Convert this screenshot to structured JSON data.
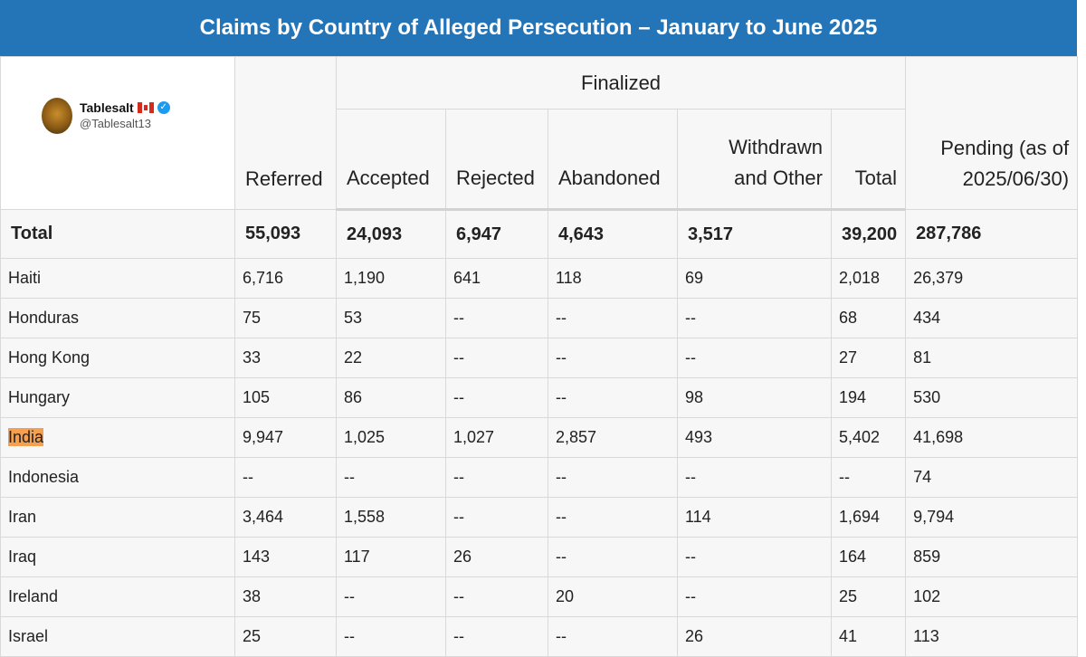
{
  "title": "Claims by Country of Alleged Persecution – January to June 2025",
  "watermark": {
    "name": "Tablesalt",
    "handle": "@Tablesalt13",
    "icons": [
      "canada-flag-icon",
      "verified-badge-icon"
    ]
  },
  "header": {
    "group_label": "Finalized",
    "referred": "Referred",
    "accepted": "Accepted",
    "rejected": "Rejected",
    "abandoned": "Abandoned",
    "withdrawn_1": "Withdrawn",
    "withdrawn_2": "and Other",
    "total": "Total",
    "pending_1": "Pending (as of",
    "pending_2": "2025/06/30)"
  },
  "total_row": [
    "Total",
    "55,093",
    "24,093",
    "6,947",
    "4,643",
    "3,517",
    "39,200",
    "287,786"
  ],
  "rows": [
    [
      "Haiti",
      "6,716",
      "1,190",
      "641",
      "118",
      "69",
      "2,018",
      "26,379"
    ],
    [
      "Honduras",
      "75",
      "53",
      "--",
      "--",
      "--",
      "68",
      "434"
    ],
    [
      "Hong Kong",
      "33",
      "22",
      "--",
      "--",
      "--",
      "27",
      "81"
    ],
    [
      "Hungary",
      "105",
      "86",
      "--",
      "--",
      "98",
      "194",
      "530"
    ],
    [
      "India",
      "9,947",
      "1,025",
      "1,027",
      "2,857",
      "493",
      "5,402",
      "41,698"
    ],
    [
      "Indonesia",
      "--",
      "--",
      "--",
      "--",
      "--",
      "--",
      "74"
    ],
    [
      "Iran",
      "3,464",
      "1,558",
      "--",
      "--",
      "114",
      "1,694",
      "9,794"
    ],
    [
      "Iraq",
      "143",
      "117",
      "26",
      "--",
      "--",
      "164",
      "859"
    ],
    [
      "Ireland",
      "38",
      "--",
      "--",
      "20",
      "--",
      "25",
      "102"
    ],
    [
      "Israel",
      "25",
      "--",
      "--",
      "--",
      "26",
      "41",
      "113"
    ]
  ],
  "highlighted_country": "India",
  "highlight_color": "#f4a050",
  "title_bar_color": "#2474b8",
  "chart_data": {
    "type": "table",
    "title": "Claims by Country of Alleged Persecution – January to June 2025",
    "columns": [
      "",
      "Referred",
      "Accepted",
      "Rejected",
      "Abandoned",
      "Withdrawn and Other",
      "Total",
      "Pending (as of 2025/06/30)"
    ],
    "column_groups": [
      {
        "label": "Finalized",
        "columns": [
          "Accepted",
          "Rejected",
          "Abandoned",
          "Withdrawn and Other",
          "Total"
        ]
      }
    ],
    "rows": [
      [
        "Total",
        55093,
        24093,
        6947,
        4643,
        3517,
        39200,
        287786
      ],
      [
        "Haiti",
        6716,
        1190,
        641,
        118,
        69,
        2018,
        26379
      ],
      [
        "Honduras",
        75,
        53,
        null,
        null,
        null,
        68,
        434
      ],
      [
        "Hong Kong",
        33,
        22,
        null,
        null,
        null,
        27,
        81
      ],
      [
        "Hungary",
        105,
        86,
        null,
        null,
        98,
        194,
        530
      ],
      [
        "India",
        9947,
        1025,
        1027,
        2857,
        493,
        5402,
        41698
      ],
      [
        "Indonesia",
        null,
        null,
        null,
        null,
        null,
        null,
        74
      ],
      [
        "Iran",
        3464,
        1558,
        null,
        null,
        114,
        1694,
        9794
      ],
      [
        "Iraq",
        143,
        117,
        26,
        null,
        null,
        164,
        859
      ],
      [
        "Ireland",
        38,
        null,
        null,
        20,
        null,
        25,
        102
      ],
      [
        "Israel",
        25,
        null,
        null,
        null,
        26,
        41,
        113
      ]
    ]
  }
}
